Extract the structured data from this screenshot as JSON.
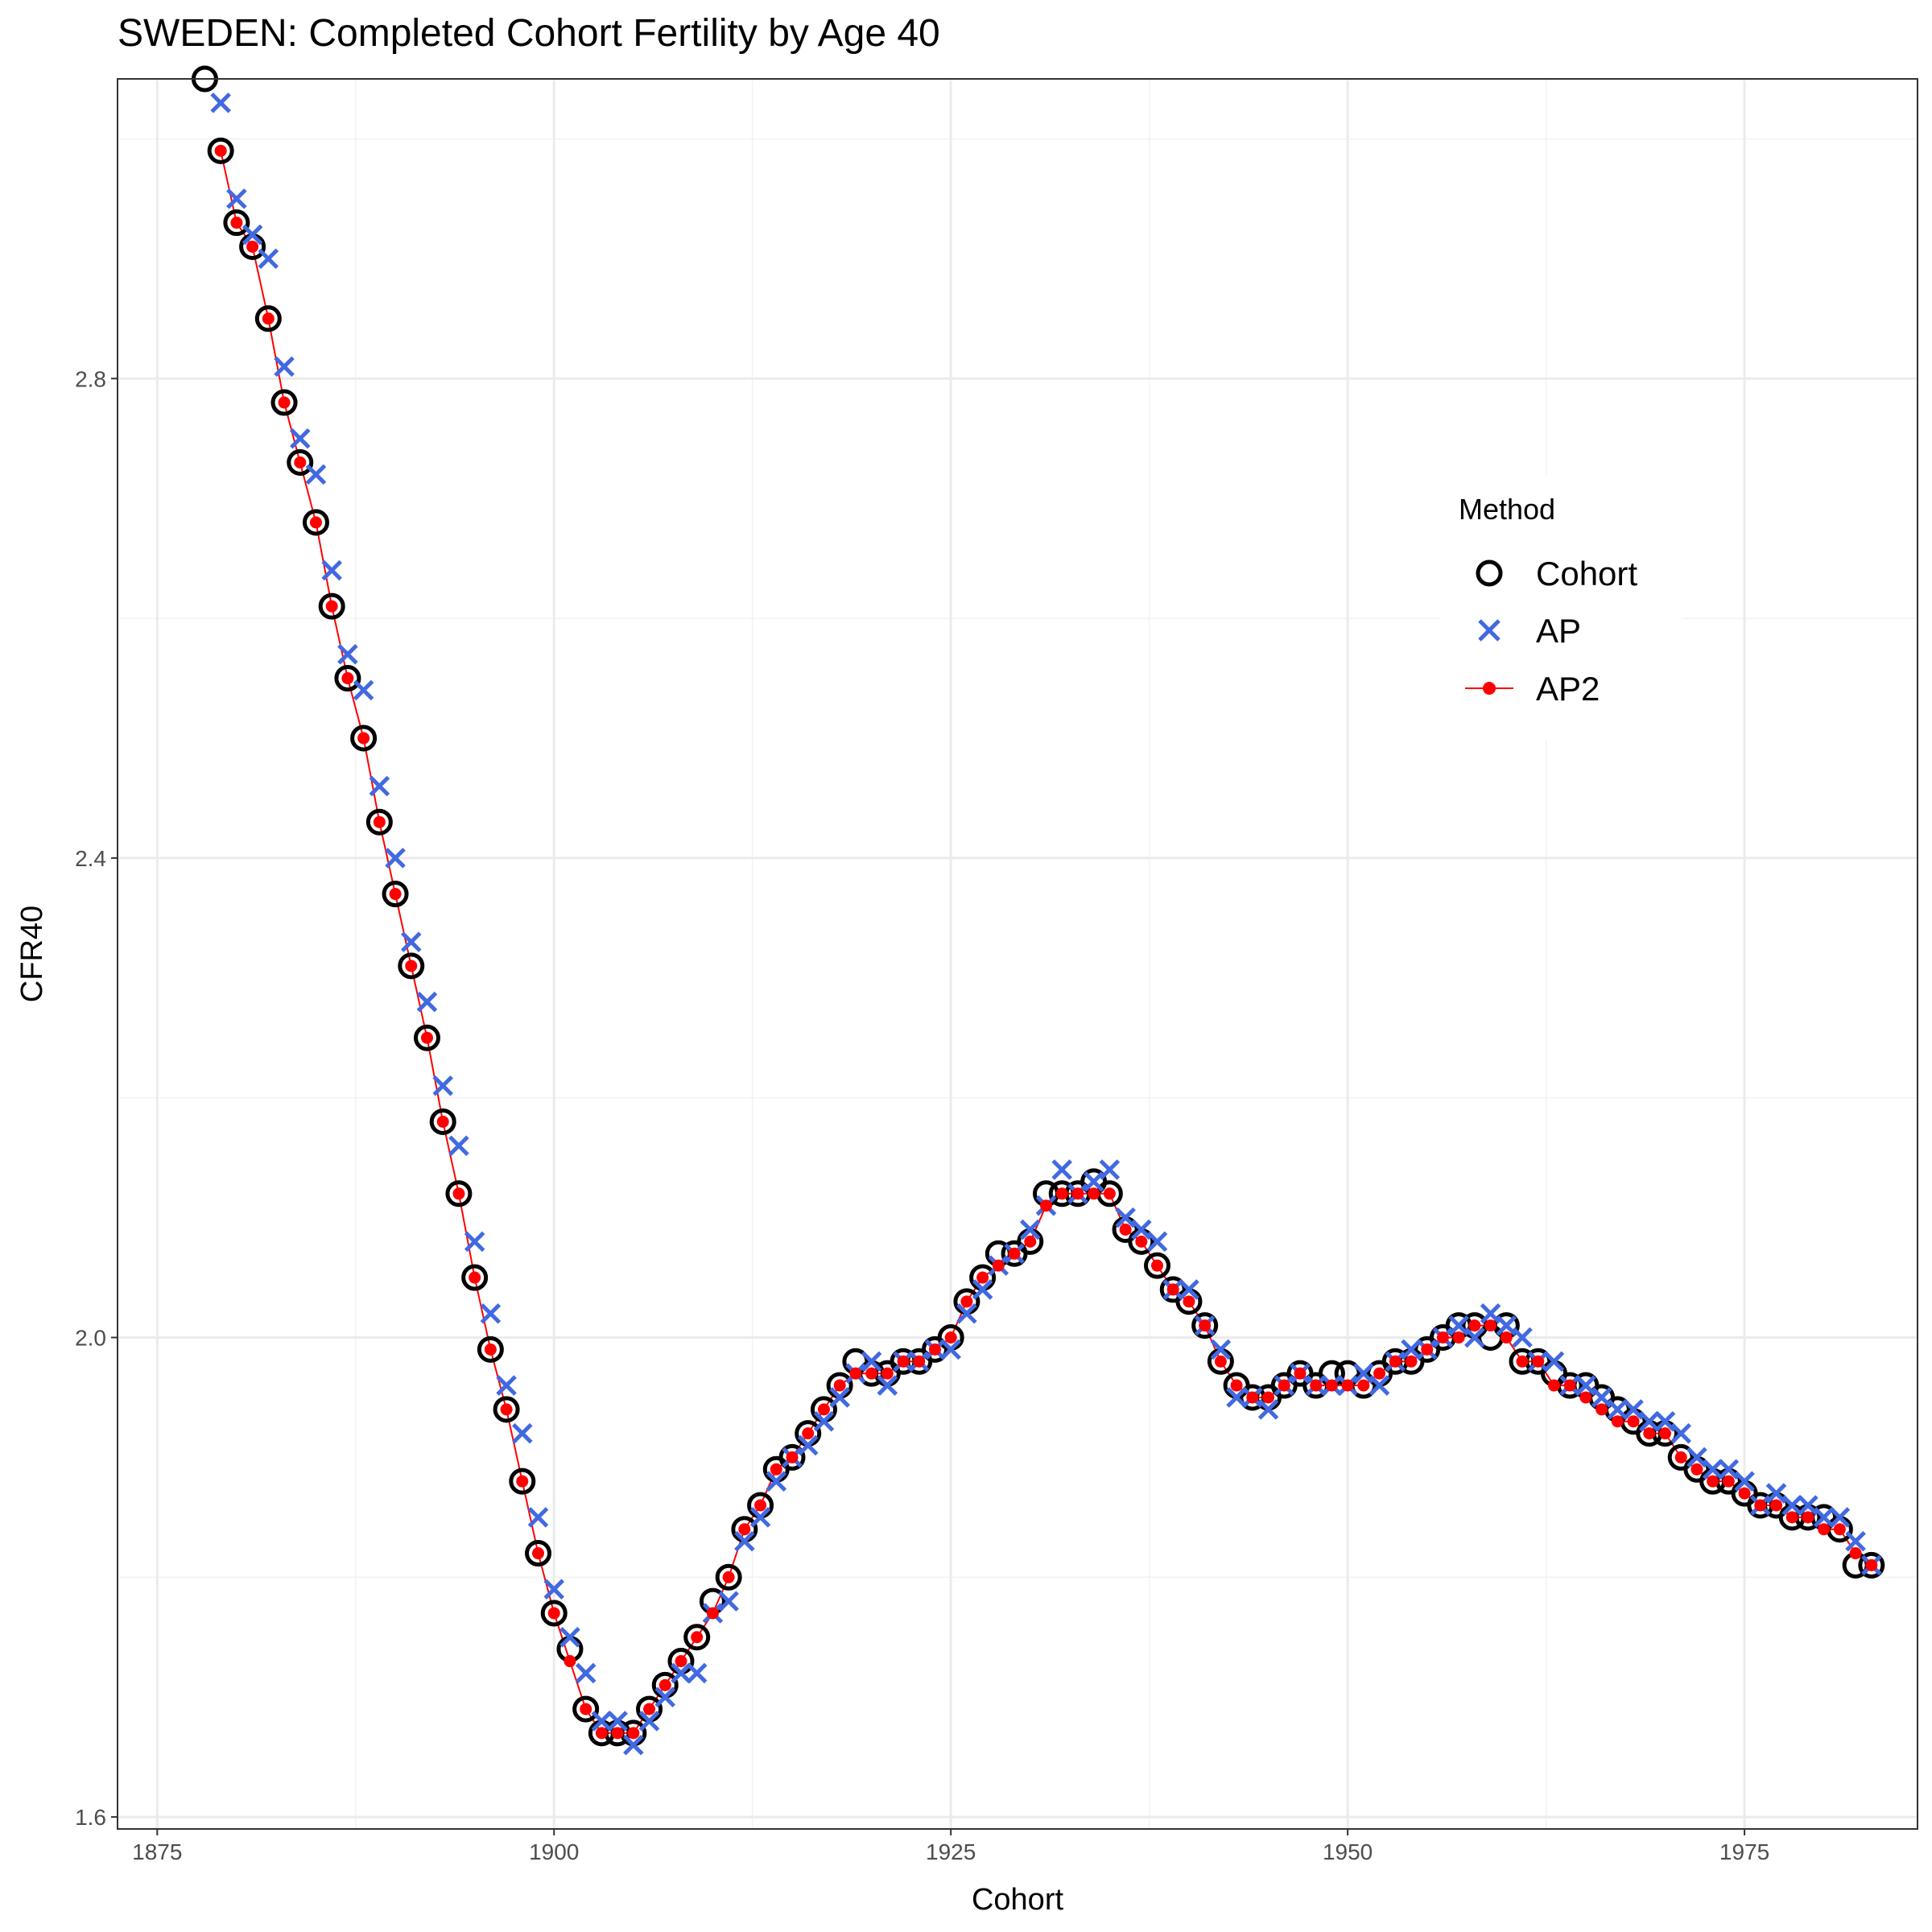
{
  "chart_data": {
    "type": "scatter",
    "title": "SWEDEN: Completed Cohort Fertility by Age 40",
    "xlabel": "Cohort",
    "ylabel": "CFR40",
    "xlim": [
      1872.5,
      1985.9
    ],
    "ylim": [
      1.59,
      3.05
    ],
    "x_ticks": [
      1875,
      1900,
      1925,
      1950,
      1975
    ],
    "y_ticks": [
      1.6,
      2.0,
      2.4,
      2.8
    ],
    "x_tick_labels": [
      "1875",
      "1900",
      "1925",
      "1950",
      "1975"
    ],
    "y_tick_labels": [
      "1.6",
      "2.0",
      "2.4",
      "2.8"
    ],
    "grid": true,
    "legend": {
      "title": "Method",
      "position": "right-inside"
    },
    "series": [
      {
        "name": "Cohort",
        "marker": "open-circle",
        "color": "#000000",
        "x": [
          1878,
          1879,
          1880,
          1881,
          1882,
          1883,
          1884,
          1885,
          1886,
          1887,
          1888,
          1889,
          1890,
          1891,
          1892,
          1893,
          1894,
          1895,
          1896,
          1897,
          1898,
          1899,
          1900,
          1901,
          1902,
          1903,
          1904,
          1905,
          1906,
          1907,
          1908,
          1909,
          1910,
          1911,
          1912,
          1913,
          1914,
          1915,
          1916,
          1917,
          1918,
          1919,
          1920,
          1921,
          1922,
          1923,
          1924,
          1925,
          1926,
          1927,
          1928,
          1929,
          1930,
          1931,
          1932,
          1933,
          1934,
          1935,
          1936,
          1937,
          1938,
          1939,
          1940,
          1941,
          1942,
          1943,
          1944,
          1945,
          1946,
          1947,
          1948,
          1949,
          1950,
          1951,
          1952,
          1953,
          1954,
          1955,
          1956,
          1957,
          1958,
          1959,
          1960,
          1961,
          1962,
          1963,
          1964,
          1965,
          1966,
          1967,
          1968,
          1969,
          1970,
          1971,
          1972,
          1973,
          1974,
          1975,
          1976,
          1977,
          1978,
          1979,
          1980,
          1981,
          1982,
          1983
        ],
        "values": [
          3.05,
          2.99,
          2.93,
          2.91,
          2.85,
          2.78,
          2.73,
          2.68,
          2.61,
          2.55,
          2.5,
          2.43,
          2.37,
          2.31,
          2.25,
          2.18,
          2.12,
          2.05,
          1.99,
          1.94,
          1.88,
          1.82,
          1.77,
          1.74,
          1.69,
          1.67,
          1.67,
          1.67,
          1.69,
          1.71,
          1.73,
          1.75,
          1.78,
          1.8,
          1.84,
          1.86,
          1.89,
          1.9,
          1.92,
          1.94,
          1.96,
          1.98,
          1.97,
          1.97,
          1.98,
          1.98,
          1.99,
          2.0,
          2.03,
          2.05,
          2.07,
          2.07,
          2.08,
          2.12,
          2.12,
          2.12,
          2.13,
          2.12,
          2.09,
          2.08,
          2.06,
          2.04,
          2.03,
          2.01,
          1.98,
          1.96,
          1.95,
          1.95,
          1.96,
          1.97,
          1.96,
          1.97,
          1.97,
          1.96,
          1.97,
          1.98,
          1.98,
          1.99,
          2.0,
          2.01,
          2.01,
          2.0,
          2.01,
          1.98,
          1.98,
          1.97,
          1.96,
          1.96,
          1.95,
          1.94,
          1.93,
          1.92,
          1.92,
          1.9,
          1.89,
          1.88,
          1.88,
          1.87,
          1.86,
          1.86,
          1.85,
          1.85,
          1.85,
          1.84,
          1.81,
          1.81
        ]
      },
      {
        "name": "AP",
        "marker": "x",
        "color": "#4169E1",
        "x": [
          1879,
          1880,
          1881,
          1882,
          1883,
          1884,
          1885,
          1886,
          1887,
          1888,
          1889,
          1890,
          1891,
          1892,
          1893,
          1894,
          1895,
          1896,
          1897,
          1898,
          1899,
          1900,
          1901,
          1902,
          1903,
          1904,
          1905,
          1906,
          1907,
          1908,
          1909,
          1910,
          1911,
          1912,
          1913,
          1914,
          1915,
          1916,
          1917,
          1918,
          1919,
          1920,
          1921,
          1922,
          1923,
          1924,
          1925,
          1926,
          1927,
          1928,
          1929,
          1930,
          1931,
          1932,
          1933,
          1934,
          1935,
          1936,
          1937,
          1938,
          1939,
          1940,
          1941,
          1942,
          1943,
          1944,
          1945,
          1946,
          1947,
          1948,
          1949,
          1950,
          1951,
          1952,
          1953,
          1954,
          1955,
          1956,
          1957,
          1958,
          1959,
          1960,
          1961,
          1962,
          1963,
          1964,
          1965,
          1966,
          1967,
          1968,
          1969,
          1970,
          1971,
          1972,
          1973,
          1974,
          1975,
          1976,
          1977,
          1978,
          1979,
          1980,
          1981,
          1982,
          1983
        ],
        "values": [
          3.03,
          2.95,
          2.92,
          2.9,
          2.81,
          2.75,
          2.72,
          2.64,
          2.57,
          2.54,
          2.46,
          2.4,
          2.33,
          2.28,
          2.21,
          2.16,
          2.08,
          2.02,
          1.96,
          1.92,
          1.85,
          1.79,
          1.75,
          1.72,
          1.68,
          1.68,
          1.66,
          1.68,
          1.7,
          1.72,
          1.72,
          1.77,
          1.78,
          1.83,
          1.85,
          1.88,
          1.9,
          1.91,
          1.93,
          1.95,
          1.97,
          1.98,
          1.96,
          1.98,
          1.98,
          1.99,
          1.99,
          2.02,
          2.04,
          2.06,
          2.07,
          2.09,
          2.11,
          2.14,
          2.12,
          2.13,
          2.14,
          2.1,
          2.09,
          2.08,
          2.04,
          2.04,
          2.01,
          1.99,
          1.95,
          1.95,
          1.94,
          1.96,
          1.97,
          1.96,
          1.96,
          1.96,
          1.97,
          1.96,
          1.98,
          1.99,
          1.99,
          2.0,
          2.01,
          2.0,
          2.02,
          2.01,
          2.0,
          1.98,
          1.98,
          1.96,
          1.96,
          1.95,
          1.94,
          1.94,
          1.93,
          1.93,
          1.92,
          1.9,
          1.89,
          1.89,
          1.88,
          1.86,
          1.87,
          1.86,
          1.86,
          1.85,
          1.85,
          1.83,
          1.81
        ]
      },
      {
        "name": "AP2",
        "marker": "dot-line",
        "color": "#ff0000",
        "x": [
          1879,
          1880,
          1881,
          1882,
          1883,
          1884,
          1885,
          1886,
          1887,
          1888,
          1889,
          1890,
          1891,
          1892,
          1893,
          1894,
          1895,
          1896,
          1897,
          1898,
          1899,
          1900,
          1901,
          1902,
          1903,
          1904,
          1905,
          1906,
          1907,
          1908,
          1909,
          1910,
          1911,
          1912,
          1913,
          1914,
          1915,
          1916,
          1917,
          1918,
          1919,
          1920,
          1921,
          1922,
          1923,
          1924,
          1925,
          1926,
          1927,
          1928,
          1929,
          1930,
          1931,
          1932,
          1933,
          1934,
          1935,
          1936,
          1937,
          1938,
          1939,
          1940,
          1941,
          1942,
          1943,
          1944,
          1945,
          1946,
          1947,
          1948,
          1949,
          1950,
          1951,
          1952,
          1953,
          1954,
          1955,
          1956,
          1957,
          1958,
          1959,
          1960,
          1961,
          1962,
          1963,
          1964,
          1965,
          1966,
          1967,
          1968,
          1969,
          1970,
          1971,
          1972,
          1973,
          1974,
          1975,
          1976,
          1977,
          1978,
          1979,
          1980,
          1981,
          1982,
          1983
        ],
        "values": [
          2.99,
          2.93,
          2.91,
          2.85,
          2.78,
          2.73,
          2.68,
          2.61,
          2.55,
          2.5,
          2.43,
          2.37,
          2.31,
          2.25,
          2.18,
          2.12,
          2.05,
          1.99,
          1.94,
          1.88,
          1.82,
          1.77,
          1.73,
          1.69,
          1.67,
          1.67,
          1.67,
          1.69,
          1.71,
          1.73,
          1.75,
          1.77,
          1.8,
          1.84,
          1.86,
          1.89,
          1.9,
          1.92,
          1.94,
          1.96,
          1.97,
          1.97,
          1.97,
          1.98,
          1.98,
          1.99,
          2.0,
          2.03,
          2.05,
          2.06,
          2.07,
          2.08,
          2.11,
          2.12,
          2.12,
          2.12,
          2.12,
          2.09,
          2.08,
          2.06,
          2.04,
          2.03,
          2.01,
          1.98,
          1.96,
          1.95,
          1.95,
          1.96,
          1.97,
          1.96,
          1.96,
          1.96,
          1.96,
          1.97,
          1.98,
          1.98,
          1.99,
          2.0,
          2.0,
          2.01,
          2.01,
          2.0,
          1.98,
          1.98,
          1.96,
          1.96,
          1.95,
          1.94,
          1.93,
          1.93,
          1.92,
          1.92,
          1.9,
          1.89,
          1.88,
          1.88,
          1.87,
          1.86,
          1.86,
          1.85,
          1.85,
          1.84,
          1.84,
          1.82,
          1.81
        ]
      }
    ]
  }
}
